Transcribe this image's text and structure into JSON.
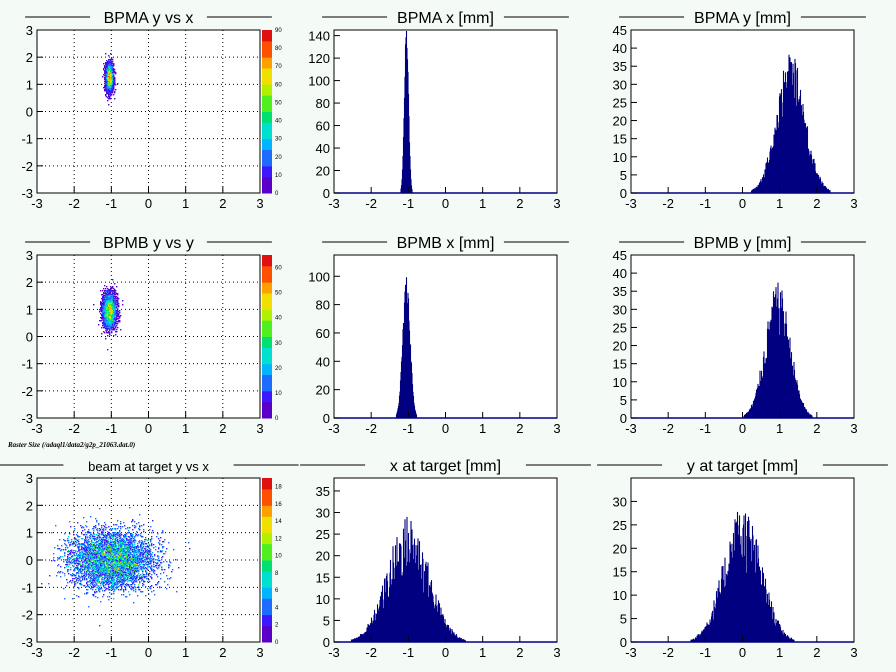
{
  "canvas": {
    "background": "#f4faf6",
    "frame_color": "#ffffff",
    "bar_color": "#000080"
  },
  "footer_text": "Raster Size (/adaql1/data2/g2p_21063.dat.0)",
  "chart_data": [
    {
      "id": "bpma-2d",
      "type": "heatmap",
      "title": "BPMA y vs x",
      "xlim": [
        -3,
        3
      ],
      "ylim": [
        -3,
        3
      ],
      "xticks": [
        "-3",
        "-2",
        "-1",
        "0",
        "1",
        "2",
        "3"
      ],
      "yticks": [
        "-3",
        "-2",
        "-1",
        "0",
        "1",
        "2",
        "3"
      ],
      "grid": true,
      "blob": {
        "cx": -1.05,
        "cy": 1.25,
        "sx": 0.05,
        "sy": 0.25,
        "n": 3400
      },
      "colorbar": {
        "range": [
          0,
          90
        ],
        "ticks": [
          "0",
          "10",
          "20",
          "30",
          "40",
          "50",
          "60",
          "70",
          "80",
          "90"
        ]
      }
    },
    {
      "id": "bpma-x",
      "type": "histogram",
      "title": "BPMA x [mm]",
      "xlim": [
        -3,
        3
      ],
      "ylim": [
        0,
        145
      ],
      "xticks": [
        "-3",
        "-2",
        "-1",
        "0",
        "1",
        "2",
        "3"
      ],
      "yticks": [
        "0",
        "20",
        "40",
        "60",
        "80",
        "100",
        "120",
        "140"
      ],
      "peak": {
        "mean": -1.05,
        "sigma": 0.055,
        "height": 140,
        "noise": 0.06
      }
    },
    {
      "id": "bpma-y",
      "type": "histogram",
      "title": "BPMA y [mm]",
      "xlim": [
        -3,
        3
      ],
      "ylim": [
        0,
        45
      ],
      "xticks": [
        "-3",
        "-2",
        "-1",
        "0",
        "1",
        "2",
        "3"
      ],
      "yticks": [
        "0",
        "5",
        "10",
        "15",
        "20",
        "25",
        "30",
        "35",
        "40",
        "45"
      ],
      "peak": {
        "mean": 1.3,
        "sigma": 0.38,
        "height": 31,
        "noise": 0.25
      }
    },
    {
      "id": "bpmb-2d",
      "type": "heatmap",
      "title": "BPMB y vs y",
      "xlim": [
        -3,
        3
      ],
      "ylim": [
        -3,
        3
      ],
      "xticks": [
        "-3",
        "-2",
        "-1",
        "0",
        "1",
        "2",
        "3"
      ],
      "yticks": [
        "-3",
        "-2",
        "-1",
        "0",
        "1",
        "2",
        "3"
      ],
      "grid": true,
      "blob": {
        "cx": -1.05,
        "cy": 0.95,
        "sx": 0.09,
        "sy": 0.3,
        "n": 4200
      },
      "colorbar": {
        "range": [
          0,
          65
        ],
        "ticks": [
          "0",
          "10",
          "20",
          "30",
          "40",
          "50",
          "60"
        ]
      }
    },
    {
      "id": "bpmb-x",
      "type": "histogram",
      "title": "BPMB x [mm]",
      "xlim": [
        -3,
        3
      ],
      "ylim": [
        0,
        115
      ],
      "xticks": [
        "-3",
        "-2",
        "-1",
        "0",
        "1",
        "2",
        "3"
      ],
      "yticks": [
        "0",
        "20",
        "40",
        "60",
        "80",
        "100"
      ],
      "peak": {
        "mean": -1.05,
        "sigma": 0.1,
        "height": 90,
        "noise": 0.12
      }
    },
    {
      "id": "bpmb-y",
      "type": "histogram",
      "title": "BPMB y [mm]",
      "xlim": [
        -3,
        3
      ],
      "ylim": [
        0,
        45
      ],
      "xticks": [
        "-3",
        "-2",
        "-1",
        "0",
        "1",
        "2",
        "3"
      ],
      "yticks": [
        "0",
        "5",
        "10",
        "15",
        "20",
        "25",
        "30",
        "35",
        "40",
        "45"
      ],
      "peak": {
        "mean": 0.95,
        "sigma": 0.33,
        "height": 30,
        "noise": 0.25
      }
    },
    {
      "id": "target-2d",
      "type": "heatmap",
      "title": "beam at target y vs x",
      "xlim": [
        -3,
        3
      ],
      "ylim": [
        -3,
        3
      ],
      "xticks": [
        "-3",
        "-2",
        "-1",
        "0",
        "1",
        "2",
        "3"
      ],
      "yticks": [
        "-3",
        "-2",
        "-1",
        "0",
        "1",
        "2",
        "3"
      ],
      "grid": true,
      "blob": {
        "cx": -1.0,
        "cy": 0.0,
        "sx": 0.55,
        "sy": 0.5,
        "n": 9000
      },
      "colorbar": {
        "range": [
          0,
          19
        ],
        "ticks": [
          "0",
          "2",
          "4",
          "6",
          "8",
          "10",
          "12",
          "14",
          "16",
          "18"
        ]
      }
    },
    {
      "id": "target-x",
      "type": "histogram",
      "title": "x at target [mm]",
      "xlim": [
        -3,
        3
      ],
      "ylim": [
        0,
        38
      ],
      "xticks": [
        "-3",
        "-2",
        "-1",
        "0",
        "1",
        "2",
        "3"
      ],
      "yticks": [
        "0",
        "5",
        "10",
        "15",
        "20",
        "25",
        "30",
        "35"
      ],
      "peak": {
        "mean": -1.0,
        "sigma": 0.55,
        "height": 22,
        "noise": 0.35
      }
    },
    {
      "id": "target-y",
      "type": "histogram",
      "title": "y at target [mm]",
      "xlim": [
        -3,
        3
      ],
      "ylim": [
        0,
        35
      ],
      "xticks": [
        "-3",
        "-2",
        "-1",
        "0",
        "1",
        "2",
        "3"
      ],
      "yticks": [
        "0",
        "5",
        "10",
        "15",
        "20",
        "25",
        "30"
      ],
      "peak": {
        "mean": 0.0,
        "sigma": 0.5,
        "height": 22,
        "noise": 0.35
      }
    }
  ]
}
